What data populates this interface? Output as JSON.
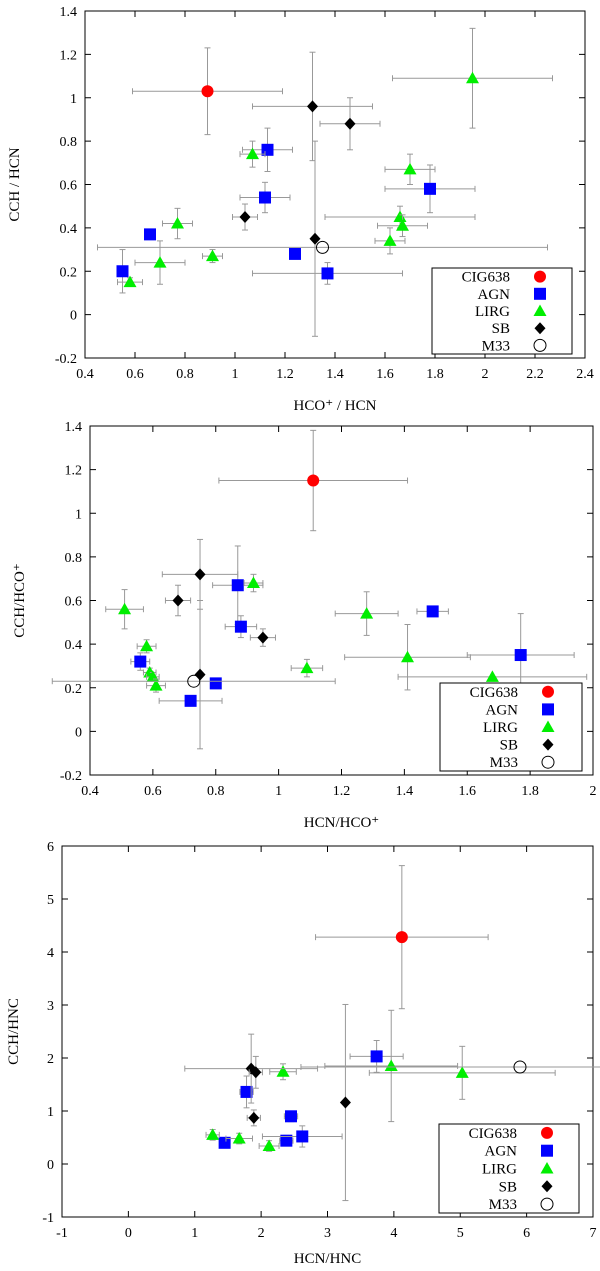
{
  "chart_data": [
    {
      "type": "scatter",
      "xlabel": "HCO⁺ / HCN",
      "ylabel": "CCH / HCN",
      "xlim": [
        0.4,
        2.4
      ],
      "ylim": [
        -0.2,
        1.4
      ],
      "xticks": [
        "0.4",
        "0.6",
        "0.8",
        "1",
        "1.2",
        "1.4",
        "1.6",
        "1.8",
        "2",
        "2.2",
        "2.4"
      ],
      "yticks": [
        "-0.2",
        "0",
        "0.2",
        "0.4",
        "0.6",
        "0.8",
        "1",
        "1.2",
        "1.4"
      ],
      "legend_position": "bottom-right",
      "series": [
        {
          "name": "CIG638",
          "marker": "circle",
          "color": "#ff0000",
          "points": [
            {
              "x": 0.89,
              "y": 1.03,
              "xerr": 0.3,
              "yerr": 0.2
            }
          ]
        },
        {
          "name": "AGN",
          "marker": "square",
          "color": "#0000ff",
          "points": [
            {
              "x": 0.55,
              "y": 0.2,
              "xerr": 0.02,
              "yerr": 0.1
            },
            {
              "x": 0.66,
              "y": 0.37,
              "xerr": 0.0,
              "yerr": 0.0
            },
            {
              "x": 1.13,
              "y": 0.76,
              "xerr": 0.1,
              "yerr": 0.1
            },
            {
              "x": 1.12,
              "y": 0.54,
              "xerr": 0.1,
              "yerr": 0.07
            },
            {
              "x": 1.24,
              "y": 0.28,
              "xerr": 0.0,
              "yerr": 0.0
            },
            {
              "x": 1.37,
              "y": 0.19,
              "xerr": 0.3,
              "yerr": 0.05
            },
            {
              "x": 1.78,
              "y": 0.58,
              "xerr": 0.18,
              "yerr": 0.11
            }
          ]
        },
        {
          "name": "LIRG",
          "marker": "triangle",
          "color": "#00ee00",
          "points": [
            {
              "x": 0.58,
              "y": 0.15,
              "xerr": 0.05,
              "yerr": 0.02
            },
            {
              "x": 0.7,
              "y": 0.24,
              "xerr": 0.1,
              "yerr": 0.1
            },
            {
              "x": 0.77,
              "y": 0.42,
              "xerr": 0.06,
              "yerr": 0.07
            },
            {
              "x": 0.91,
              "y": 0.27,
              "xerr": 0.04,
              "yerr": 0.03
            },
            {
              "x": 1.07,
              "y": 0.74,
              "xerr": 0.05,
              "yerr": 0.06
            },
            {
              "x": 1.62,
              "y": 0.34,
              "xerr": 0.06,
              "yerr": 0.06
            },
            {
              "x": 1.66,
              "y": 0.45,
              "xerr": 0.3,
              "yerr": 0.05
            },
            {
              "x": 1.67,
              "y": 0.41,
              "xerr": 0.1,
              "yerr": 0.05
            },
            {
              "x": 1.7,
              "y": 0.67,
              "xerr": 0.1,
              "yerr": 0.07
            },
            {
              "x": 1.95,
              "y": 1.09,
              "xerr": 0.32,
              "yerr": 0.23
            }
          ]
        },
        {
          "name": "SB",
          "marker": "diamond",
          "color": "#000000",
          "points": [
            {
              "x": 1.04,
              "y": 0.45,
              "xerr": 0.05,
              "yerr": 0.06
            },
            {
              "x": 1.31,
              "y": 0.96,
              "xerr": 0.24,
              "yerr": 0.25
            },
            {
              "x": 1.46,
              "y": 0.88,
              "xerr": 0.12,
              "yerr": 0.12
            },
            {
              "x": 1.32,
              "y": 0.35,
              "xerr": 0.0,
              "yerr": 0.45
            }
          ]
        },
        {
          "name": "M33",
          "marker": "open-circle",
          "color": "#000000",
          "points": [
            {
              "x": 1.35,
              "y": 0.31,
              "xerr": 0.9,
              "yerr": 0.0
            }
          ]
        }
      ]
    },
    {
      "type": "scatter",
      "xlabel": "HCN/HCO⁺",
      "ylabel": "CCH/HCO⁺",
      "xlim": [
        0.4,
        2.0
      ],
      "ylim": [
        -0.2,
        1.4
      ],
      "xticks": [
        "0.4",
        "0.6",
        "0.8",
        "1",
        "1.2",
        "1.4",
        "1.6",
        "1.8",
        "2"
      ],
      "yticks": [
        "-0.2",
        "0",
        "0.2",
        "0.4",
        "0.6",
        "0.8",
        "1",
        "1.2",
        "1.4"
      ],
      "legend_position": "bottom-right",
      "series": [
        {
          "name": "CIG638",
          "marker": "circle",
          "color": "#ff0000",
          "points": [
            {
              "x": 1.11,
              "y": 1.15,
              "xerr": 0.3,
              "yerr": 0.23
            }
          ]
        },
        {
          "name": "AGN",
          "marker": "square",
          "color": "#0000ff",
          "points": [
            {
              "x": 0.56,
              "y": 0.32,
              "xerr": 0.03,
              "yerr": 0.04
            },
            {
              "x": 0.72,
              "y": 0.14,
              "xerr": 0.1,
              "yerr": 0.0
            },
            {
              "x": 0.8,
              "y": 0.22,
              "xerr": 0.0,
              "yerr": 0.0
            },
            {
              "x": 0.87,
              "y": 0.67,
              "xerr": 0.08,
              "yerr": 0.18
            },
            {
              "x": 0.88,
              "y": 0.48,
              "xerr": 0.05,
              "yerr": 0.05
            },
            {
              "x": 1.49,
              "y": 0.55,
              "xerr": 0.05,
              "yerr": 0.0
            },
            {
              "x": 1.77,
              "y": 0.35,
              "xerr": 0.17,
              "yerr": 0.19
            }
          ]
        },
        {
          "name": "LIRG",
          "marker": "triangle",
          "color": "#00ee00",
          "points": [
            {
              "x": 0.51,
              "y": 0.56,
              "xerr": 0.06,
              "yerr": 0.09
            },
            {
              "x": 0.58,
              "y": 0.39,
              "xerr": 0.03,
              "yerr": 0.03
            },
            {
              "x": 0.59,
              "y": 0.27,
              "xerr": 0.02,
              "yerr": 0.02
            },
            {
              "x": 0.6,
              "y": 0.25,
              "xerr": 0.02,
              "yerr": 0.02
            },
            {
              "x": 0.61,
              "y": 0.21,
              "xerr": 0.03,
              "yerr": 0.03
            },
            {
              "x": 0.92,
              "y": 0.68,
              "xerr": 0.03,
              "yerr": 0.04
            },
            {
              "x": 1.09,
              "y": 0.29,
              "xerr": 0.05,
              "yerr": 0.04
            },
            {
              "x": 1.28,
              "y": 0.54,
              "xerr": 0.1,
              "yerr": 0.1
            },
            {
              "x": 1.41,
              "y": 0.34,
              "xerr": 0.2,
              "yerr": 0.15
            },
            {
              "x": 1.68,
              "y": 0.25,
              "xerr": 0.3,
              "yerr": 0.0
            }
          ]
        },
        {
          "name": "SB",
          "marker": "diamond",
          "color": "#000000",
          "points": [
            {
              "x": 0.68,
              "y": 0.6,
              "xerr": 0.04,
              "yerr": 0.07
            },
            {
              "x": 0.75,
              "y": 0.72,
              "xerr": 0.12,
              "yerr": 0.16
            },
            {
              "x": 0.95,
              "y": 0.43,
              "xerr": 0.04,
              "yerr": 0.04
            },
            {
              "x": 0.75,
              "y": 0.26,
              "xerr": 0.0,
              "yerr": 0.34
            }
          ]
        },
        {
          "name": "M33",
          "marker": "open-circle",
          "color": "#000000",
          "points": [
            {
              "x": 0.73,
              "y": 0.23,
              "xerr": 0.45,
              "yerr": 0.0
            }
          ]
        }
      ]
    },
    {
      "type": "scatter",
      "xlabel": "HCN/HNC",
      "ylabel": "CCH/HNC",
      "xlim": [
        -1,
        7
      ],
      "ylim": [
        -1,
        6
      ],
      "xticks": [
        "-1",
        "0",
        "1",
        "2",
        "3",
        "4",
        "5",
        "6",
        "7"
      ],
      "yticks": [
        "-1",
        "0",
        "1",
        "2",
        "3",
        "4",
        "5",
        "6"
      ],
      "legend_position": "bottom-right",
      "series": [
        {
          "name": "CIG638",
          "marker": "circle",
          "color": "#ff0000",
          "points": [
            {
              "x": 4.12,
              "y": 4.28,
              "xerr": 1.3,
              "yerr": 1.35
            }
          ]
        },
        {
          "name": "AGN",
          "marker": "square",
          "color": "#0000ff",
          "points": [
            {
              "x": 1.45,
              "y": 0.4,
              "xerr": 0.0,
              "yerr": 0.0
            },
            {
              "x": 1.78,
              "y": 1.36,
              "xerr": 0.1,
              "yerr": 0.3
            },
            {
              "x": 2.38,
              "y": 0.44,
              "xerr": 0.1,
              "yerr": 0.1
            },
            {
              "x": 2.45,
              "y": 0.9,
              "xerr": 0.1,
              "yerr": 0.1
            },
            {
              "x": 2.62,
              "y": 0.52,
              "xerr": 0.6,
              "yerr": 0.2
            },
            {
              "x": 3.74,
              "y": 2.03,
              "xerr": 0.4,
              "yerr": 0.3
            }
          ]
        },
        {
          "name": "LIRG",
          "marker": "triangle",
          "color": "#00ee00",
          "points": [
            {
              "x": 1.27,
              "y": 0.55,
              "xerr": 0.1,
              "yerr": 0.1
            },
            {
              "x": 1.67,
              "y": 0.48,
              "xerr": 0.2,
              "yerr": 0.1
            },
            {
              "x": 2.12,
              "y": 0.34,
              "xerr": 0.15,
              "yerr": 0.1
            },
            {
              "x": 2.33,
              "y": 1.74,
              "xerr": 0.2,
              "yerr": 0.15
            },
            {
              "x": 3.96,
              "y": 1.85,
              "xerr": 1.0,
              "yerr": 1.05
            },
            {
              "x": 5.03,
              "y": 1.72,
              "xerr": 1.4,
              "yerr": 0.5
            }
          ]
        },
        {
          "name": "SB",
          "marker": "diamond",
          "color": "#000000",
          "points": [
            {
              "x": 1.85,
              "y": 1.8,
              "xerr": 1.0,
              "yerr": 0.65
            },
            {
              "x": 1.92,
              "y": 1.73,
              "xerr": 0.1,
              "yerr": 0.3
            },
            {
              "x": 1.89,
              "y": 0.87,
              "xerr": 0.1,
              "yerr": 0.15
            },
            {
              "x": 3.27,
              "y": 1.16,
              "xerr": 0.0,
              "yerr": 1.85
            }
          ]
        },
        {
          "name": "M33",
          "marker": "open-circle",
          "color": "#000000",
          "points": [
            {
              "x": 5.9,
              "y": 1.83,
              "xerr": 3.3,
              "yerr": 0.0
            }
          ]
        }
      ]
    }
  ]
}
